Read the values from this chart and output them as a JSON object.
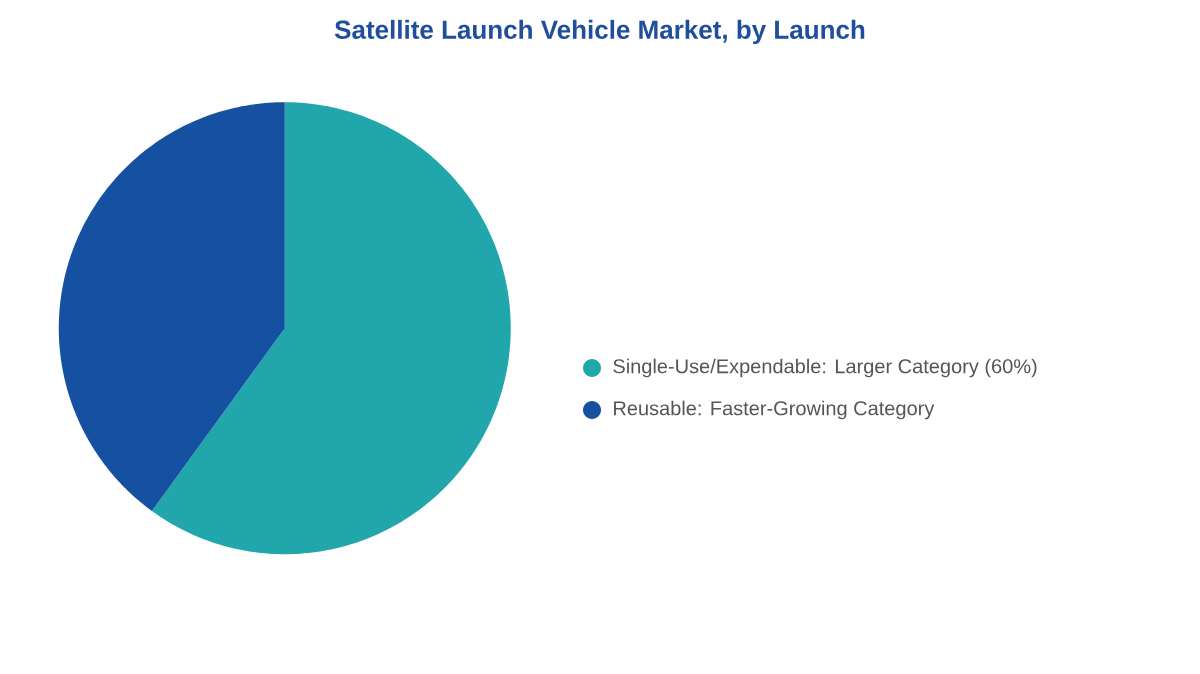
{
  "chart_data": {
    "type": "pie",
    "title": "Satellite Launch Vehicle Market, by Launch",
    "categories": [
      "Single-Use/Expendable:  Larger Category (60%)",
      "Reusable:  Faster-Growing Category"
    ],
    "values": [
      60,
      40
    ],
    "colors": [
      "#21a6ab",
      "#1650a0"
    ],
    "legend": "right"
  }
}
